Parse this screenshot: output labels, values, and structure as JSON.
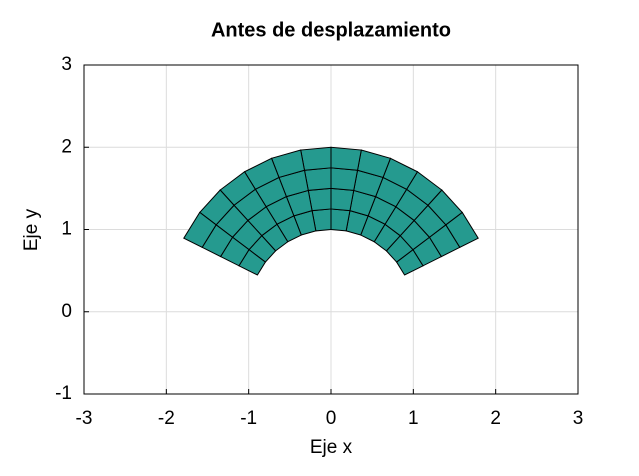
{
  "chart_data": {
    "type": "mesh",
    "title": "Antes de desplazamiento",
    "xlabel": "Eje x",
    "ylabel": "Eje y",
    "xlim": [
      -3,
      3
    ],
    "ylim": [
      -1,
      3
    ],
    "xticks": [
      -3,
      -2,
      -1,
      0,
      1,
      2,
      3
    ],
    "yticks": [
      -1,
      0,
      1,
      2,
      3
    ],
    "grid": true,
    "color": "#259a8f",
    "edge_color": "#000000",
    "rings": [
      {
        "x": [
          0.894,
          0.797,
          0.673,
          0.525,
          0.361,
          0.184,
          0,
          -0.184,
          -0.361,
          -0.525,
          -0.673,
          -0.797,
          -0.894
        ],
        "y": [
          0.447,
          0.604,
          0.74,
          0.851,
          0.933,
          0.983,
          1,
          0.983,
          0.933,
          0.851,
          0.74,
          0.604,
          0.447
        ]
      },
      {
        "x": [
          1.118,
          0.996,
          0.841,
          0.656,
          0.451,
          0.23,
          0,
          -0.23,
          -0.451,
          -0.656,
          -0.841,
          -0.996,
          -1.118
        ],
        "y": [
          0.559,
          0.755,
          0.925,
          1.064,
          1.166,
          1.229,
          1.25,
          1.229,
          1.166,
          1.064,
          0.925,
          0.755,
          0.559
        ]
      },
      {
        "x": [
          1.341,
          1.196,
          1.01,
          0.788,
          0.542,
          0.276,
          0,
          -0.276,
          -0.542,
          -0.788,
          -1.01,
          -1.196,
          -1.341
        ],
        "y": [
          0.671,
          0.906,
          1.11,
          1.277,
          1.4,
          1.475,
          1.5,
          1.475,
          1.4,
          1.277,
          1.11,
          0.906,
          0.671
        ]
      },
      {
        "x": [
          1.565,
          1.395,
          1.178,
          0.919,
          0.632,
          0.322,
          0,
          -0.322,
          -0.632,
          -0.919,
          -1.178,
          -1.395,
          -1.565
        ],
        "y": [
          0.783,
          1.057,
          1.295,
          1.489,
          1.633,
          1.72,
          1.75,
          1.72,
          1.633,
          1.489,
          1.295,
          1.057,
          0.783
        ]
      },
      {
        "x": [
          1.788,
          1.594,
          1.346,
          1.05,
          0.722,
          0.368,
          0,
          -0.368,
          -0.722,
          -1.05,
          -1.346,
          -1.594,
          -1.788
        ],
        "y": [
          0.894,
          1.208,
          1.48,
          1.702,
          1.866,
          1.966,
          2,
          1.966,
          1.866,
          1.702,
          1.48,
          1.208,
          0.894
        ]
      }
    ]
  }
}
